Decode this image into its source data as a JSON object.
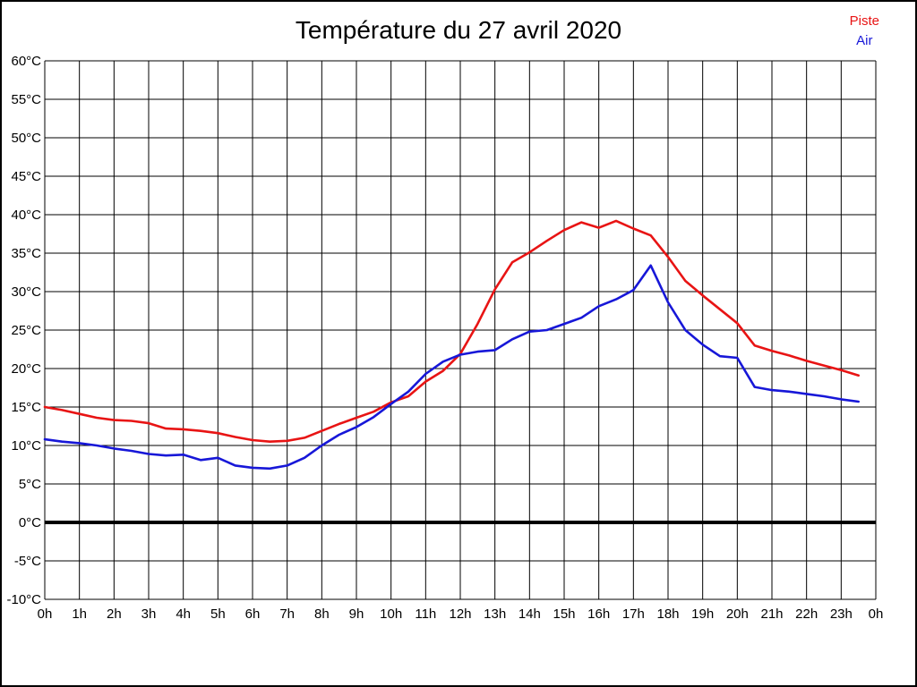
{
  "title": "Température du 27 avril 2020",
  "chart_data": {
    "type": "line",
    "title": "Température du 27 avril 2020",
    "xlabel": "",
    "ylabel": "",
    "x_tick_labels": [
      "0h",
      "1h",
      "2h",
      "3h",
      "4h",
      "5h",
      "6h",
      "7h",
      "8h",
      "9h",
      "10h",
      "11h",
      "12h",
      "13h",
      "14h",
      "15h",
      "16h",
      "17h",
      "18h",
      "19h",
      "20h",
      "21h",
      "22h",
      "23h",
      "0h"
    ],
    "y_tick_suffix": "°C",
    "ylim": [
      -10,
      60
    ],
    "xlim_hours": [
      0,
      24
    ],
    "y_tick_step": 5,
    "grid": true,
    "zero_line_bold": true,
    "legend_position": "top-right",
    "x": [
      0,
      0.5,
      1,
      1.5,
      2,
      2.5,
      3,
      3.5,
      4,
      4.5,
      5,
      5.5,
      6,
      6.5,
      7,
      7.5,
      8,
      8.5,
      9,
      9.5,
      10,
      10.5,
      11,
      11.5,
      12,
      12.5,
      13,
      13.5,
      14,
      14.5,
      15,
      15.5,
      16,
      16.5,
      17,
      17.5,
      18,
      18.5,
      19,
      19.5,
      20,
      20.5,
      21,
      21.5,
      22,
      22.5,
      23,
      23.5
    ],
    "series": [
      {
        "name": "Piste",
        "color": "#e81414",
        "values": [
          15.0,
          14.6,
          14.1,
          13.6,
          13.3,
          13.2,
          12.9,
          12.2,
          12.1,
          11.9,
          11.6,
          11.1,
          10.7,
          10.5,
          10.6,
          11.0,
          11.9,
          12.8,
          13.6,
          14.4,
          15.6,
          16.4,
          18.3,
          19.7,
          21.9,
          25.8,
          30.3,
          33.8,
          35.1,
          36.6,
          38.0,
          39.0,
          38.3,
          39.2,
          38.2,
          37.3,
          34.5,
          31.4,
          29.5,
          27.7,
          25.9,
          23.0,
          22.3,
          21.7,
          21.0,
          20.4,
          19.8,
          19.1
        ]
      },
      {
        "name": "Air",
        "color": "#1717d8",
        "values": [
          10.8,
          10.5,
          10.3,
          10.0,
          9.6,
          9.3,
          8.9,
          8.7,
          8.8,
          8.1,
          8.4,
          7.4,
          7.1,
          7.0,
          7.4,
          8.4,
          10.0,
          11.4,
          12.4,
          13.7,
          15.4,
          17.0,
          19.3,
          20.9,
          21.8,
          22.2,
          22.4,
          23.8,
          24.8,
          25.0,
          25.8,
          26.6,
          28.1,
          29.0,
          30.2,
          33.4,
          28.6,
          25.0,
          23.1,
          21.6,
          21.4,
          17.6,
          17.2,
          17.0,
          16.7,
          16.4,
          16.0,
          15.7
        ]
      }
    ]
  },
  "colors": {
    "grid": "#000000",
    "axis_text": "#000000",
    "title_text": "#000000",
    "background": "#ffffff",
    "zero_line": "#000000"
  }
}
